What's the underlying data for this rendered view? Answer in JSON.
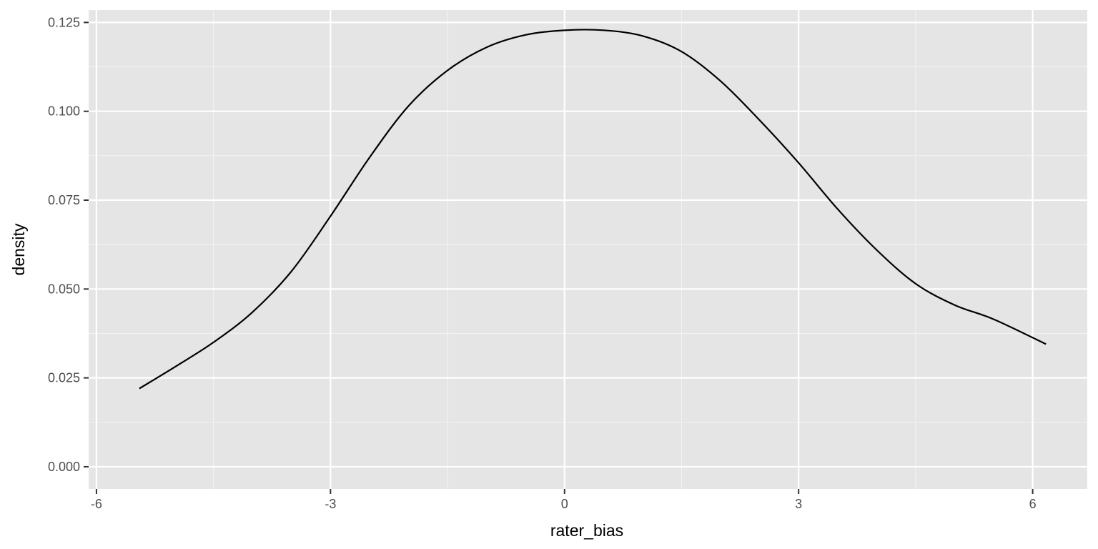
{
  "chart_data": {
    "type": "line",
    "title": "",
    "xlabel": "rater_bias",
    "ylabel": "density",
    "xlim": [
      -6.1,
      6.7
    ],
    "ylim": [
      -0.00625,
      0.1285
    ],
    "x_ticks": [
      -6,
      -3,
      0,
      3,
      6
    ],
    "x_tick_labels": [
      "-6",
      "-3",
      "0",
      "3",
      "6"
    ],
    "y_ticks": [
      0.0,
      0.025,
      0.05,
      0.075,
      0.1,
      0.125
    ],
    "y_tick_labels": [
      "0.000",
      "0.025",
      "0.050",
      "0.075",
      "0.100",
      "0.125"
    ],
    "grid": true,
    "colors": {
      "panel_background": "#e5e5e5",
      "grid_major": "#ffffff",
      "grid_minor": "#f2f2f2",
      "line": "#000000"
    },
    "series": [
      {
        "x": [
          -5.45,
          -5.0,
          -4.5,
          -4.0,
          -3.5,
          -3.0,
          -2.5,
          -2.0,
          -1.5,
          -1.0,
          -0.5,
          0.0,
          0.5,
          1.0,
          1.5,
          2.0,
          2.5,
          3.0,
          3.5,
          4.0,
          4.5,
          5.0,
          5.5,
          6.17
        ],
        "y": [
          0.022,
          0.028,
          0.035,
          0.0435,
          0.055,
          0.0705,
          0.087,
          0.1015,
          0.1115,
          0.118,
          0.1215,
          0.1228,
          0.1228,
          0.1212,
          0.1168,
          0.1085,
          0.0975,
          0.0855,
          0.0725,
          0.061,
          0.0515,
          0.0455,
          0.0415,
          0.0345
        ]
      }
    ]
  }
}
